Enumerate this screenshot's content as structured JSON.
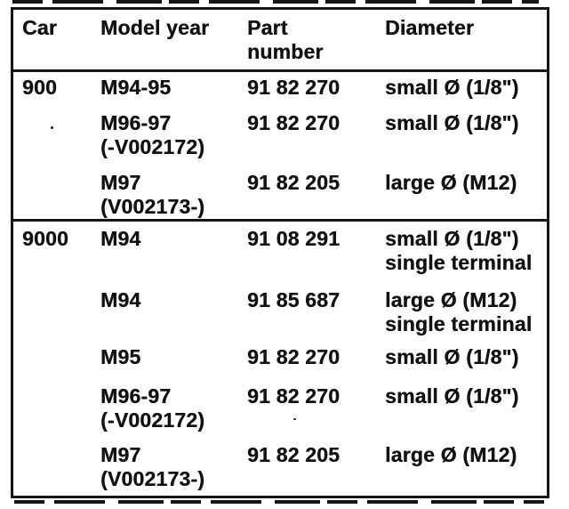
{
  "table": {
    "header": {
      "car": "Car",
      "model_year": "Model year",
      "part_line1": "Part",
      "part_line2": "number",
      "diameter": "Diameter"
    },
    "sections": [
      {
        "car_group": "900",
        "rows": [
          {
            "car": "900",
            "model_year": "M94-95",
            "model_year_note": "",
            "part_number": "91 82 270",
            "diameter": "small Ø (1/8\")",
            "diameter_note": ""
          },
          {
            "car": "",
            "model_year": "M96-97",
            "model_year_note": "(-V002172)",
            "part_number": "91 82 270",
            "diameter": "small Ø (1/8\")",
            "diameter_note": ""
          },
          {
            "car": "",
            "model_year": "M97",
            "model_year_note": "(V002173-)",
            "part_number": "91 82 205",
            "diameter": "large Ø (M12)",
            "diameter_note": ""
          }
        ]
      },
      {
        "car_group": "9000",
        "rows": [
          {
            "car": "9000",
            "model_year": "M94",
            "model_year_note": "",
            "part_number": "91 08 291",
            "diameter": "small Ø (1/8\")",
            "diameter_note": "single terminal"
          },
          {
            "car": "",
            "model_year": "M94",
            "model_year_note": "",
            "part_number": "91 85 687",
            "diameter": "large Ø (M12)",
            "diameter_note": "single terminal"
          },
          {
            "car": "",
            "model_year": "M95",
            "model_year_note": "",
            "part_number": "91 82 270",
            "diameter": "small Ø (1/8\")",
            "diameter_note": ""
          },
          {
            "car": "",
            "model_year": "M96-97",
            "model_year_note": "(-V002172)",
            "part_number": "91 82 270",
            "diameter": "small Ø (1/8\")",
            "diameter_note": ""
          },
          {
            "car": "",
            "model_year": "M97",
            "model_year_note": "(V002173-)",
            "part_number": "91 82 205",
            "diameter": "large Ø (M12)",
            "diameter_note": ""
          }
        ]
      }
    ]
  },
  "colors": {
    "ink": "#141414",
    "paper": "#ffffff"
  }
}
